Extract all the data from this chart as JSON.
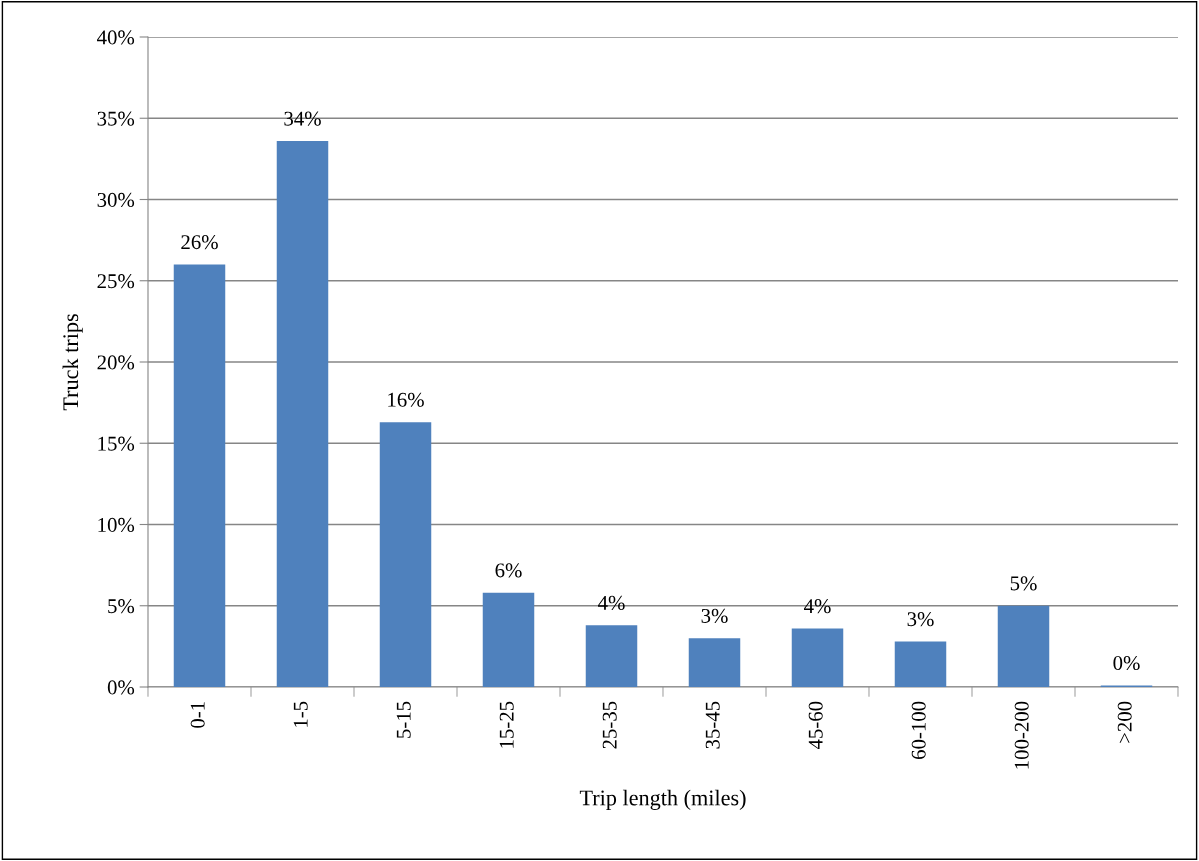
{
  "chart_data": {
    "type": "bar",
    "xlabel": "Trip length (miles)",
    "ylabel": "Truck trips",
    "categories": [
      "0-1",
      "1-5",
      "5-15",
      "15-25",
      "25-35",
      "35-45",
      "45-60",
      "60-100",
      "100-200",
      ">200"
    ],
    "values": [
      26.0,
      33.6,
      16.3,
      5.8,
      3.8,
      3.0,
      3.6,
      2.8,
      5.0,
      0.1
    ],
    "value_labels": [
      "26%",
      "34%",
      "16%",
      "6%",
      "4%",
      "3%",
      "4%",
      "3%",
      "5%",
      "0%"
    ],
    "color": "#4f81bd",
    "ylim": [
      0,
      40
    ],
    "yticks": [
      {
        "value": 0,
        "label": "0%"
      },
      {
        "value": 5,
        "label": "5%"
      },
      {
        "value": 10,
        "label": "10%"
      },
      {
        "value": 15,
        "label": "15%"
      },
      {
        "value": 20,
        "label": "20%"
      },
      {
        "value": 25,
        "label": "25%"
      },
      {
        "value": 30,
        "label": "30%"
      },
      {
        "value": 35,
        "label": "35%"
      },
      {
        "value": 40,
        "label": "40%"
      }
    ],
    "grid": "y",
    "legend": false
  }
}
